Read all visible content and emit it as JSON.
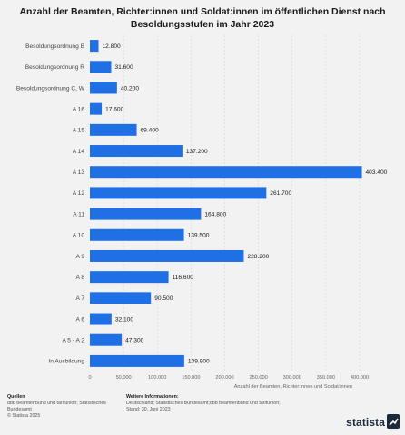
{
  "chart_data": {
    "type": "bar",
    "orientation": "horizontal",
    "title": "Anzahl der Beamten, Richter:innen und Soldat:innen im öffentlichen Dienst nach Besoldungsstufen im Jahr 2023",
    "categories": [
      "Besoldungsordnung B",
      "Besoldungsordnung R",
      "Besoldungsordnung C, W",
      "A 16",
      "A 15",
      "A 14",
      "A 13",
      "A 12",
      "A 11",
      "A 10",
      "A 9",
      "A 8",
      "A 7",
      "A 6",
      "A 5 - A 2",
      "In Ausbildung"
    ],
    "values": [
      12800,
      31600,
      40200,
      17600,
      69400,
      137200,
      403400,
      261700,
      164800,
      139500,
      228200,
      116600,
      90500,
      32100,
      47300,
      139900
    ],
    "value_labels": [
      "12.800",
      "31.600",
      "40.200",
      "17.600",
      "69.400",
      "137.200",
      "403.400",
      "261.700",
      "164.800",
      "139.500",
      "228.200",
      "116.600",
      "90.500",
      "32.100",
      "47.300",
      "139.900"
    ],
    "xlabel": "Anzahl der Beamten, Richter:innen und Soldat:innen",
    "ylabel": "",
    "xlim": [
      0,
      400000
    ],
    "x_ticks": [
      0,
      50000,
      100000,
      150000,
      200000,
      250000,
      300000,
      350000,
      400000
    ],
    "x_tick_labels": [
      "0",
      "50.000",
      "100.000",
      "150.000",
      "200.000",
      "250.000",
      "300.000",
      "350.000",
      "400.000"
    ],
    "grid": true,
    "bar_color": "#1f6fe5"
  },
  "footer": {
    "sources_title": "Quellen",
    "sources_text": "dbb beamtenbund und tarifunion; Statistisches Bundesamt",
    "copyright": "© Statista 2025",
    "info_title": "Weitere Informationen:",
    "info_text": "Deutschland; Statistisches Bundesamt;dbb beamtenbund und tarifunion; Stand: 30. Juni 2023"
  },
  "brand": "statista"
}
